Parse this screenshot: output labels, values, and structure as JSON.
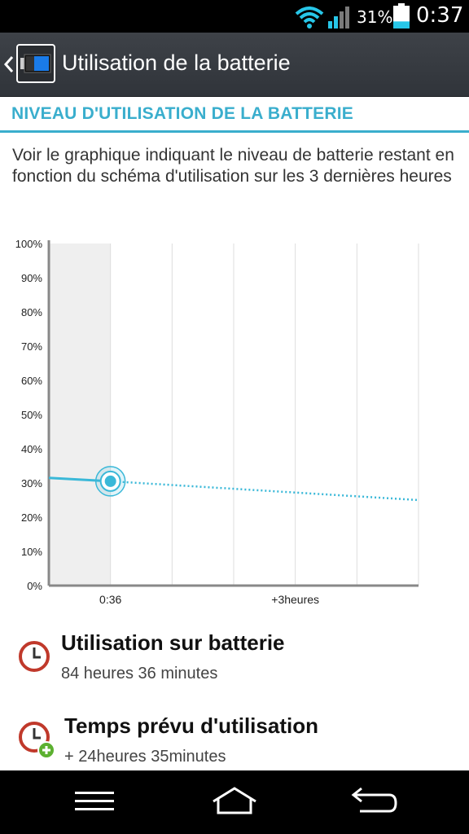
{
  "status_bar": {
    "battery_percent_text": "31%",
    "battery_level": 0.31,
    "time": "0:37",
    "icons": [
      "wifi-icon",
      "signal-icon",
      "battery-icon"
    ]
  },
  "action_bar": {
    "title": "Utilisation de la batterie",
    "icons": [
      "back-icon",
      "battery-app-icon"
    ]
  },
  "section": {
    "header": "NIVEAU D'UTILISATION DE LA BATTERIE",
    "description": "Voir le graphique indiquant le niveau de batterie restant en fonction du schéma d'utilisation sur les 3 dernières heures"
  },
  "chart_data": {
    "type": "line",
    "y_ticks": [
      "100%",
      "90%",
      "80%",
      "70%",
      "60%",
      "50%",
      "40%",
      "30%",
      "20%",
      "10%",
      "0%"
    ],
    "ylim": [
      0,
      100
    ],
    "x_labels": [
      "0:36",
      "+3heures"
    ],
    "grid": true,
    "series": [
      {
        "style": "solid",
        "points": [
          [
            0,
            31.5
          ],
          [
            1,
            30.5
          ]
        ]
      },
      {
        "style": "dotted",
        "points": [
          [
            1,
            30.5
          ],
          [
            6,
            25
          ]
        ]
      }
    ],
    "current_point": [
      1,
      30.5
    ],
    "colors": {
      "line": "#3ab8d8",
      "grid": "#dddddd",
      "axis": "#888888",
      "history_fill": "#efefef"
    }
  },
  "usage": {
    "on_battery_label": "Utilisation sur batterie",
    "on_battery_value": "84 heures 36 minutes",
    "estimated_label": "Temps prévu d'utilisation",
    "estimated_value": "+ 24heures 35minutes",
    "icons": [
      "clock-icon",
      "clock-plus-icon"
    ]
  },
  "nav_bar": {
    "icons": [
      "menu-icon",
      "home-icon",
      "back-arrow-icon"
    ]
  },
  "colors": {
    "accent": "#3aaecd",
    "clock_red": "#c0392b",
    "plus_green": "#5cb030"
  }
}
